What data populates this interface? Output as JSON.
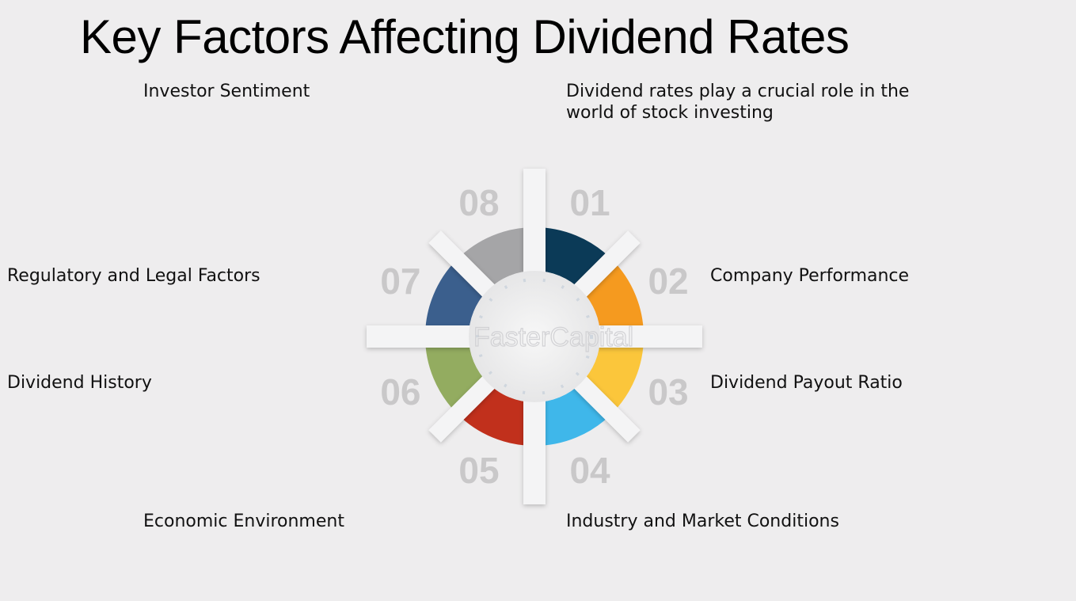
{
  "title": "Key Factors Affecting Dividend Rates",
  "intro": [
    "Dividend rates play a crucial role in the",
    "world of stock investing"
  ],
  "factors": [
    {
      "num": "01",
      "label": "Company Performance",
      "color": "#0b3a57"
    },
    {
      "num": "02",
      "label": "Dividend Payout Ratio",
      "color": "#f59a1f"
    },
    {
      "num": "03",
      "label": "Industry and Market Conditions",
      "color": "#fbc63b"
    },
    {
      "num": "04",
      "label": "Economic Environment",
      "color": "#3fb7ea"
    },
    {
      "num": "05",
      "label": "Dividend History",
      "color": "#c1301c"
    },
    {
      "num": "06",
      "label": "Regulatory and Legal Factors",
      "color": "#93ac60"
    },
    {
      "num": "07",
      "label": "Investor Sentiment",
      "color": "#3b5f8d"
    },
    {
      "num": "08",
      "label": "",
      "color": "#a5a5a7"
    }
  ],
  "watermark": "FasterCapital"
}
